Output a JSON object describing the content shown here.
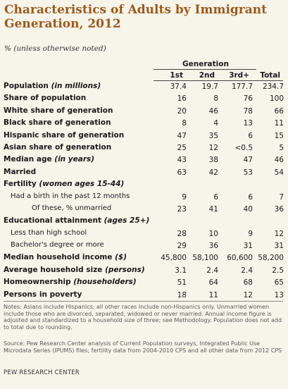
{
  "title": "Characteristics of Adults by Immigrant Generation, 2012",
  "subtitle": "% (unless otherwise noted)",
  "generation_header": "Generation",
  "columns": [
    "1st",
    "2nd",
    "3rd+",
    "Total"
  ],
  "rows": [
    {
      "label": "Population ",
      "label_italic": "(in millions)",
      "values": [
        "37.4",
        "19.7",
        "177.7",
        "234.7"
      ],
      "style": "main"
    },
    {
      "label": "Share of population",
      "label_italic": "",
      "values": [
        "16",
        "8",
        "76",
        "100"
      ],
      "style": "main"
    },
    {
      "label": "White share of generation",
      "label_italic": "",
      "values": [
        "20",
        "46",
        "78",
        "66"
      ],
      "style": "main"
    },
    {
      "label": "Black share of generation",
      "label_italic": "",
      "values": [
        "8",
        "4",
        "13",
        "11"
      ],
      "style": "main"
    },
    {
      "label": "Hispanic share of generation",
      "label_italic": "",
      "values": [
        "47",
        "35",
        "6",
        "15"
      ],
      "style": "main"
    },
    {
      "label": "Asian share of generation",
      "label_italic": "",
      "values": [
        "25",
        "12",
        "<0.5",
        "5"
      ],
      "style": "main"
    },
    {
      "label": "Median age ",
      "label_italic": "(in years)",
      "values": [
        "43",
        "38",
        "47",
        "46"
      ],
      "style": "main"
    },
    {
      "label": "Married",
      "label_italic": "",
      "values": [
        "63",
        "42",
        "53",
        "54"
      ],
      "style": "main"
    },
    {
      "label": "Fertility ",
      "label_italic": "(women ages 15-44)",
      "values": [
        "",
        "",
        "",
        ""
      ],
      "style": "head"
    },
    {
      "label": "Had a birth in the past 12 months",
      "label_italic": "",
      "values": [
        "9",
        "6",
        "6",
        "7"
      ],
      "style": "sub in1"
    },
    {
      "label": "Of these, % unmarried",
      "label_italic": "",
      "values": [
        "23",
        "41",
        "40",
        "36"
      ],
      "style": "sub in2"
    },
    {
      "label": "Educational attainment ",
      "label_italic": "(ages 25+)",
      "values": [
        "",
        "",
        "",
        ""
      ],
      "style": "head"
    },
    {
      "label": "Less than high school",
      "label_italic": "",
      "values": [
        "28",
        "10",
        "9",
        "12"
      ],
      "style": "sub in1"
    },
    {
      "label": "Bachelor's degree or more",
      "label_italic": "",
      "values": [
        "29",
        "36",
        "31",
        "31"
      ],
      "style": "sub in1"
    },
    {
      "label": "Median household income ",
      "label_italic": "($)",
      "values": [
        "45,800",
        "58,100",
        "60,600",
        "58,200"
      ],
      "style": "main"
    },
    {
      "label": "Average household size ",
      "label_italic": "(persons)",
      "values": [
        "3.1",
        "2.4",
        "2.4",
        "2.5"
      ],
      "style": "main"
    },
    {
      "label": "Homeownership ",
      "label_italic": "(householders)",
      "values": [
        "51",
        "64",
        "68",
        "65"
      ],
      "style": "main"
    },
    {
      "label": "Persons in poverty",
      "label_italic": "",
      "values": [
        "18",
        "11",
        "12",
        "13"
      ],
      "style": "main"
    }
  ],
  "notes": "Notes: Asians include Hispanics; all other races include non-Hispanics only. Unmarried women include those who are divorced, separated, widowed or never married. Annual income figure is adjusted and standardized to a household size of three; see Methodology. Population does not add to total due to rounding.",
  "source": "Source: Pew Research Center analysis of Current Population surveys, Integrated Public Use Microdata Series (IPUMS) files; fertility data from 2004-2010 CPS and all other data from 2012 CPS",
  "brand": "PEW RESEARCH CENTER"
}
